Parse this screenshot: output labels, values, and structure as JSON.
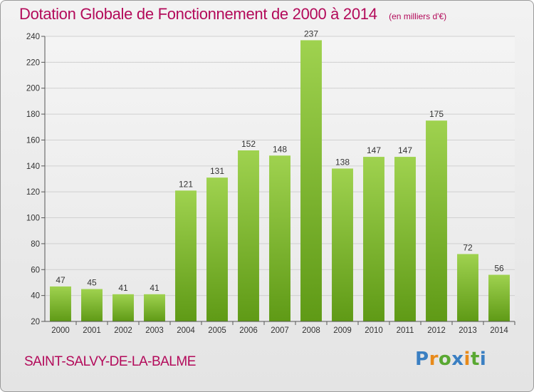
{
  "chart_data": {
    "type": "bar",
    "title": "Dotation Globale de Fonctionnement de 2000 à 2014",
    "unit_label": "(en milliers d'€)",
    "categories": [
      "2000",
      "2001",
      "2002",
      "2003",
      "2004",
      "2005",
      "2006",
      "2007",
      "2008",
      "2009",
      "2010",
      "2011",
      "2012",
      "2013",
      "2014"
    ],
    "values": [
      47,
      45,
      41,
      41,
      121,
      131,
      152,
      148,
      237,
      138,
      147,
      147,
      175,
      72,
      56
    ],
    "ylim": [
      20,
      240
    ],
    "yticks": [
      20,
      40,
      60,
      80,
      100,
      120,
      140,
      160,
      180,
      200,
      220,
      240
    ],
    "grid": true,
    "xlabel": "",
    "ylabel": ""
  },
  "commune": "SAINT-SALVY-DE-LA-BALME",
  "logo": {
    "text": "Proxiti"
  },
  "colors": {
    "title": "#b30a5a",
    "bar_top": "#9fd24f",
    "bar_bottom": "#5f9a16",
    "grid": "#d0d0d0"
  }
}
